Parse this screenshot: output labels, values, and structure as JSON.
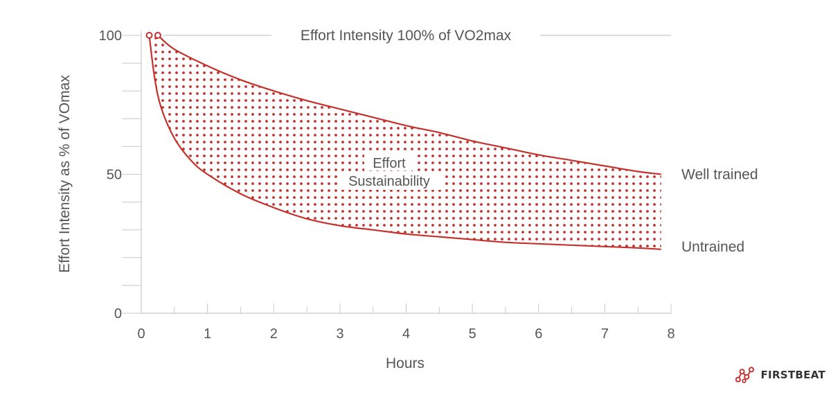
{
  "chart_data": {
    "type": "area",
    "title": "Effort Intensity 100% of VO2max",
    "xlabel": "Hours",
    "ylabel": "Effort Intensity as % of VOmax",
    "xlim": [
      0,
      8
    ],
    "ylim": [
      0,
      100
    ],
    "x_ticks": [
      0,
      1,
      2,
      3,
      4,
      5,
      6,
      7,
      8
    ],
    "x_minor_step": 0.5,
    "y_ticks": [
      0,
      50,
      100
    ],
    "y_minor_step": 10,
    "grid": false,
    "reference_line": {
      "y": 100,
      "label": "Effort Intensity 100% of VO2max"
    },
    "series": [
      {
        "name": "Well trained",
        "x": [
          0.25,
          0.5,
          1,
          1.5,
          2,
          2.5,
          3,
          3.5,
          4,
          4.5,
          5,
          5.5,
          6,
          6.5,
          7,
          7.5,
          7.85
        ],
        "y": [
          100,
          95,
          89,
          84,
          80,
          76.5,
          73.5,
          70.5,
          67.5,
          65,
          62,
          59.5,
          57,
          55,
          53,
          51,
          50
        ]
      },
      {
        "name": "Untrained",
        "x": [
          0.12,
          0.2,
          0.3,
          0.5,
          0.75,
          1,
          1.5,
          2,
          2.5,
          3,
          3.5,
          4,
          4.5,
          5,
          5.5,
          6,
          6.5,
          7,
          7.5,
          7.85
        ],
        "y": [
          100,
          85,
          74,
          63,
          55,
          50,
          43,
          38,
          34,
          31.5,
          30,
          28.5,
          27.5,
          26.5,
          25.5,
          25,
          24.5,
          24,
          23.5,
          23
        ]
      }
    ],
    "shaded_region": {
      "label_lines": [
        "Effort",
        "Sustainability"
      ],
      "between": [
        "Well trained",
        "Untrained"
      ]
    },
    "markers": [
      {
        "x": 0.12,
        "y": 100
      },
      {
        "x": 0.25,
        "y": 100
      }
    ],
    "colors": {
      "series": "#c4302b",
      "axis": "#c8c8c8",
      "text": "#555555"
    }
  },
  "brand": {
    "logo_text": "FIRSTBEAT",
    "logo_icon": "firstbeat-node-icon"
  }
}
